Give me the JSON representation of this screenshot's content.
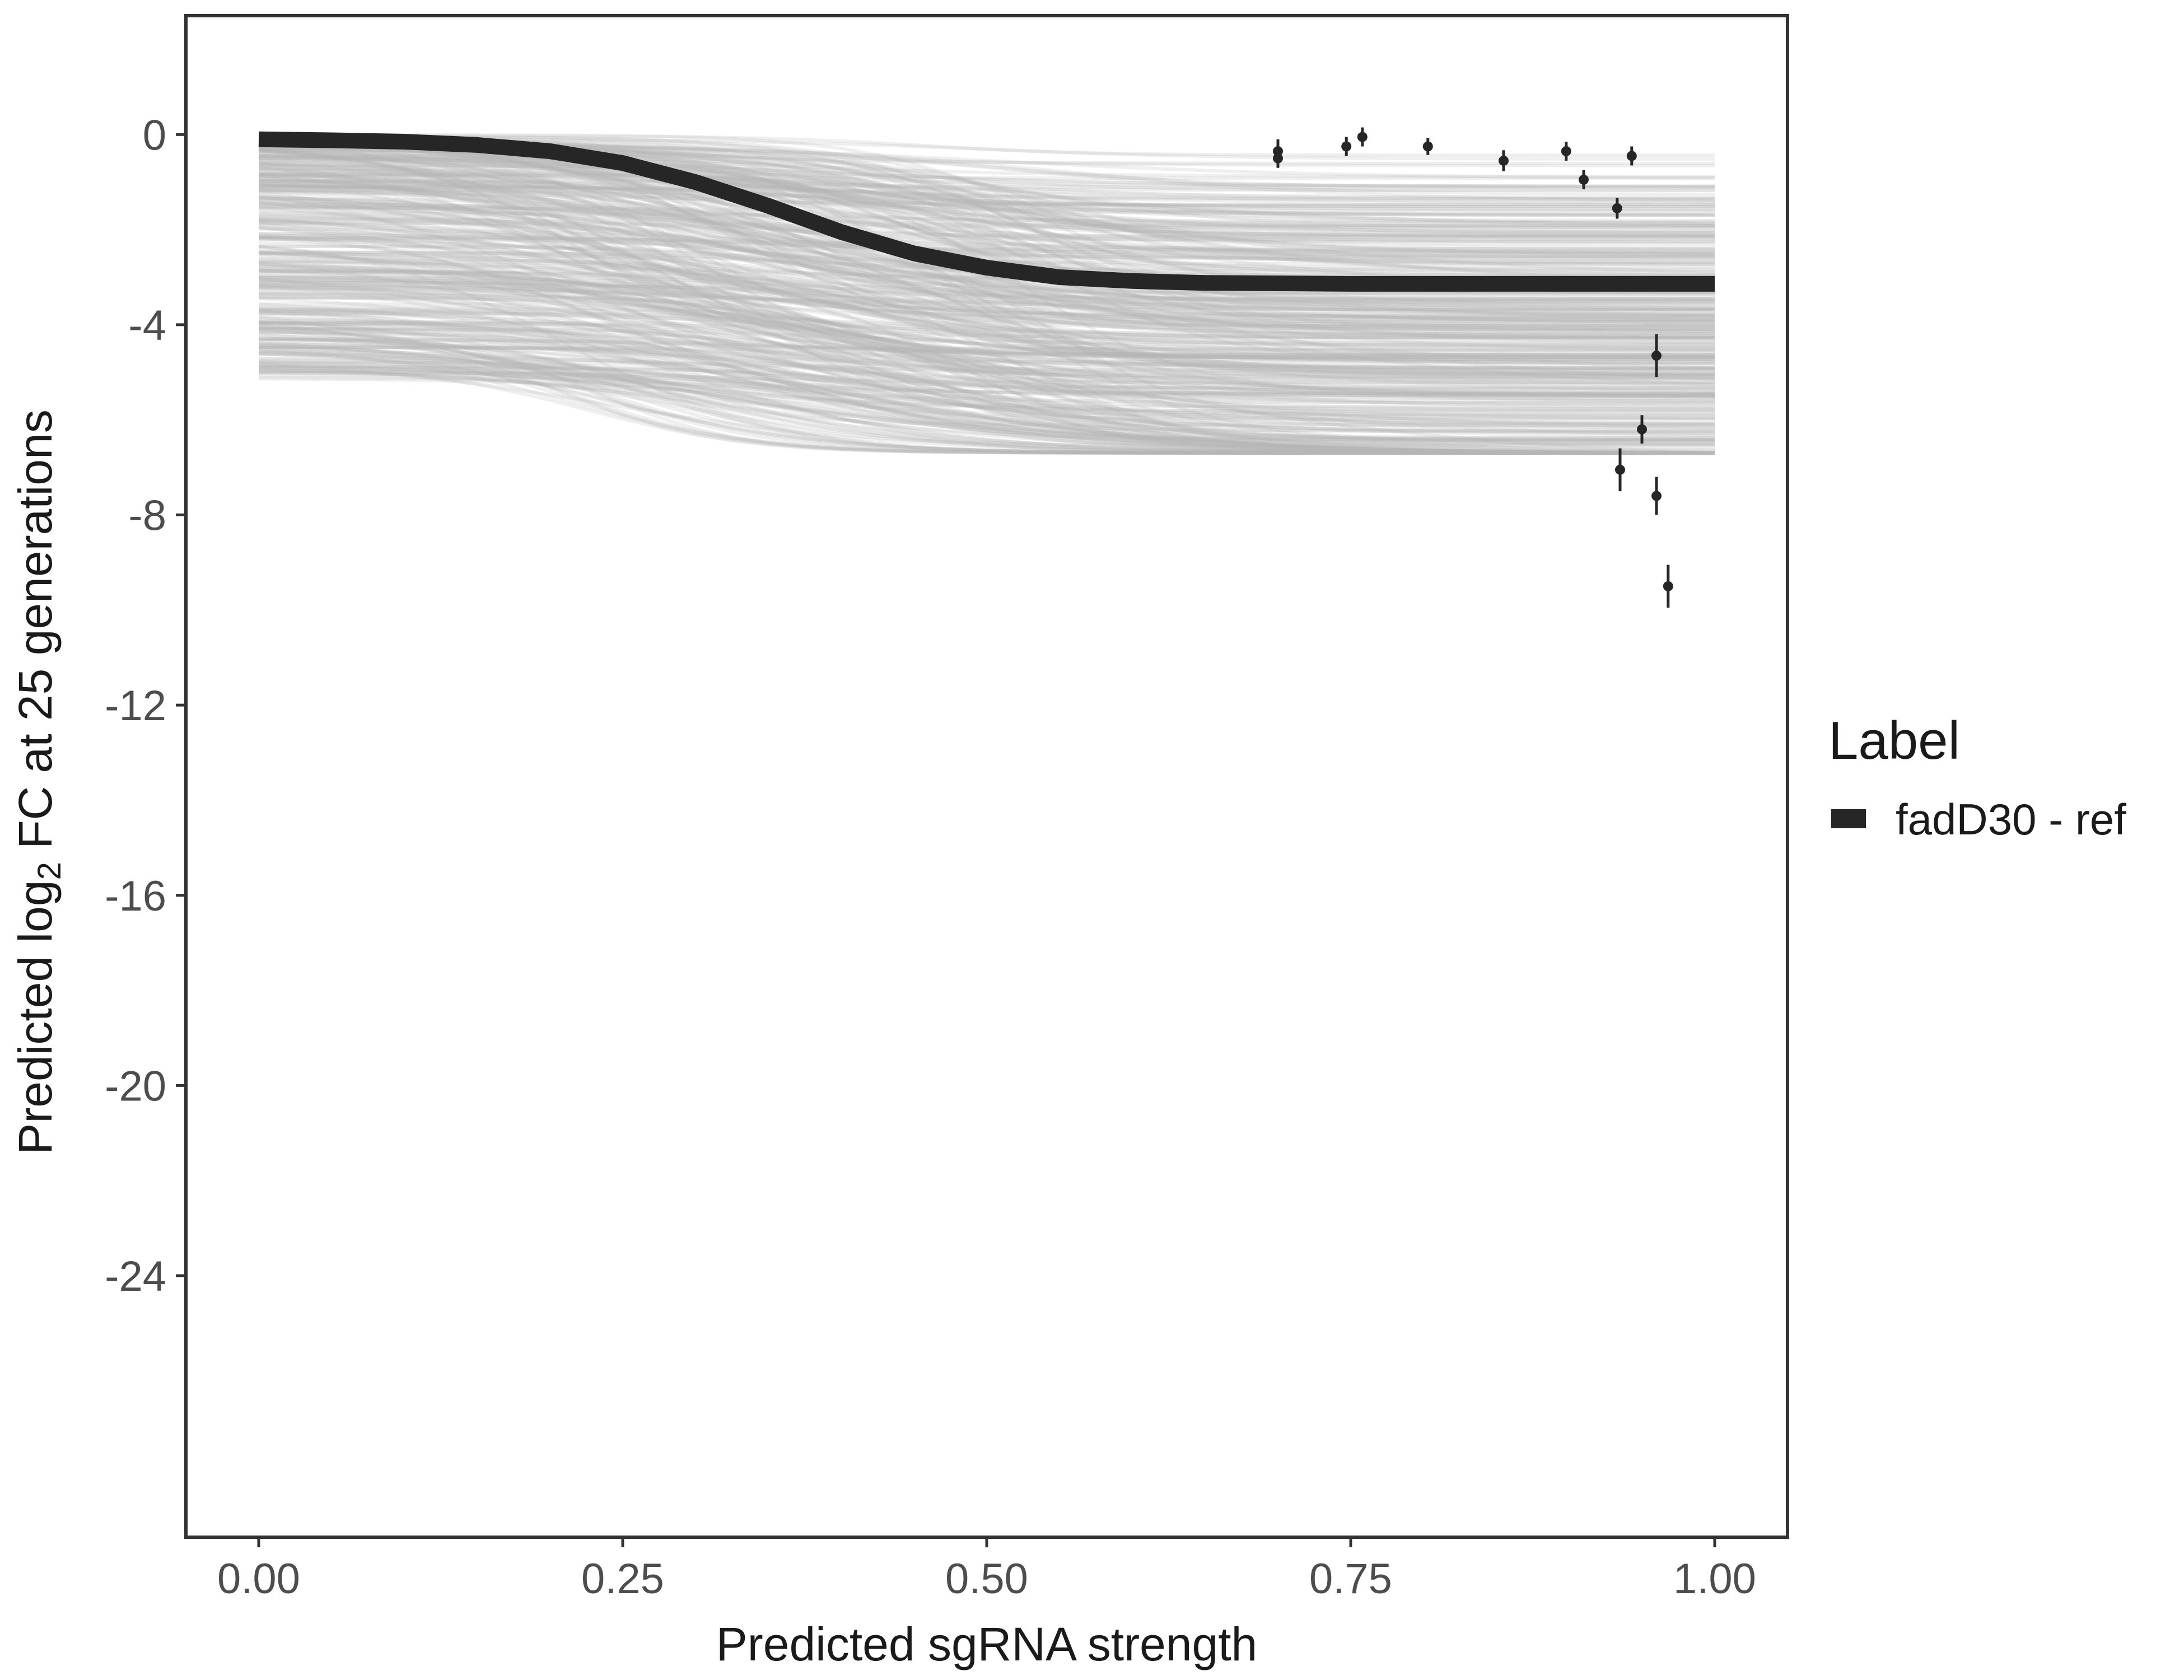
{
  "chart_data": {
    "type": "line",
    "title": "",
    "xlabel": "Predicted sgRNA strength",
    "ylabel": {
      "prefix": "Predicted  log",
      "subscript": "2",
      "suffix": " FC at 25 generations"
    },
    "xlim": [
      -0.05,
      1.05
    ],
    "ylim": [
      -29.5,
      2.5
    ],
    "x_ticks": [
      0.0,
      0.25,
      0.5,
      0.75,
      1.0
    ],
    "x_tick_labels": [
      "0.00",
      "0.25",
      "0.50",
      "0.75",
      "1.00"
    ],
    "y_ticks": [
      0,
      -4,
      -8,
      -12,
      -16,
      -20,
      -24
    ],
    "y_tick_labels": [
      "0",
      "-4",
      "-8",
      "-12",
      "-16",
      "-20",
      "-24"
    ],
    "grid": false,
    "legend": {
      "title": "Label",
      "position": "right",
      "entries": [
        {
          "label": "fadD30 - ref",
          "color": "#262626"
        }
      ]
    },
    "series": [
      {
        "name": "fadD30 - ref",
        "color": "#262626",
        "x": [
          0.0,
          0.05,
          0.1,
          0.15,
          0.2,
          0.25,
          0.3,
          0.35,
          0.4,
          0.45,
          0.5,
          0.55,
          0.6,
          0.65,
          0.7,
          0.75,
          0.8,
          0.85,
          0.9,
          0.95,
          1.0
        ],
        "y": [
          -0.1,
          -0.12,
          -0.15,
          -0.22,
          -0.35,
          -0.6,
          -1.0,
          -1.5,
          -2.05,
          -2.5,
          -2.8,
          -3.0,
          -3.08,
          -3.12,
          -3.13,
          -3.14,
          -3.14,
          -3.14,
          -3.14,
          -3.14,
          -3.14
        ]
      }
    ],
    "observations": {
      "color": "#262626",
      "points": [
        {
          "x": 0.7,
          "y": -0.35,
          "err": 0.25
        },
        {
          "x": 0.7,
          "y": -0.5,
          "err": 0.2
        },
        {
          "x": 0.747,
          "y": -0.25,
          "err": 0.2
        },
        {
          "x": 0.758,
          "y": -0.05,
          "err": 0.2
        },
        {
          "x": 0.803,
          "y": -0.25,
          "err": 0.18
        },
        {
          "x": 0.855,
          "y": -0.55,
          "err": 0.22
        },
        {
          "x": 0.898,
          "y": -0.35,
          "err": 0.2
        },
        {
          "x": 0.91,
          "y": -0.95,
          "err": 0.2
        },
        {
          "x": 0.933,
          "y": -1.55,
          "err": 0.22
        },
        {
          "x": 0.943,
          "y": -0.45,
          "err": 0.2
        },
        {
          "x": 0.95,
          "y": -6.2,
          "err": 0.3
        },
        {
          "x": 0.96,
          "y": -4.65,
          "err": 0.45
        },
        {
          "x": 0.96,
          "y": -7.6,
          "err": 0.4
        },
        {
          "x": 0.935,
          "y": -7.05,
          "err": 0.45
        },
        {
          "x": 0.968,
          "y": -9.5,
          "err": 0.45
        }
      ]
    },
    "posterior_draws": {
      "count": 400,
      "color": "#b5b5b5",
      "start_range": [
        -5.2,
        0.0
      ],
      "end_range": [
        -6.7,
        -0.3
      ]
    }
  }
}
